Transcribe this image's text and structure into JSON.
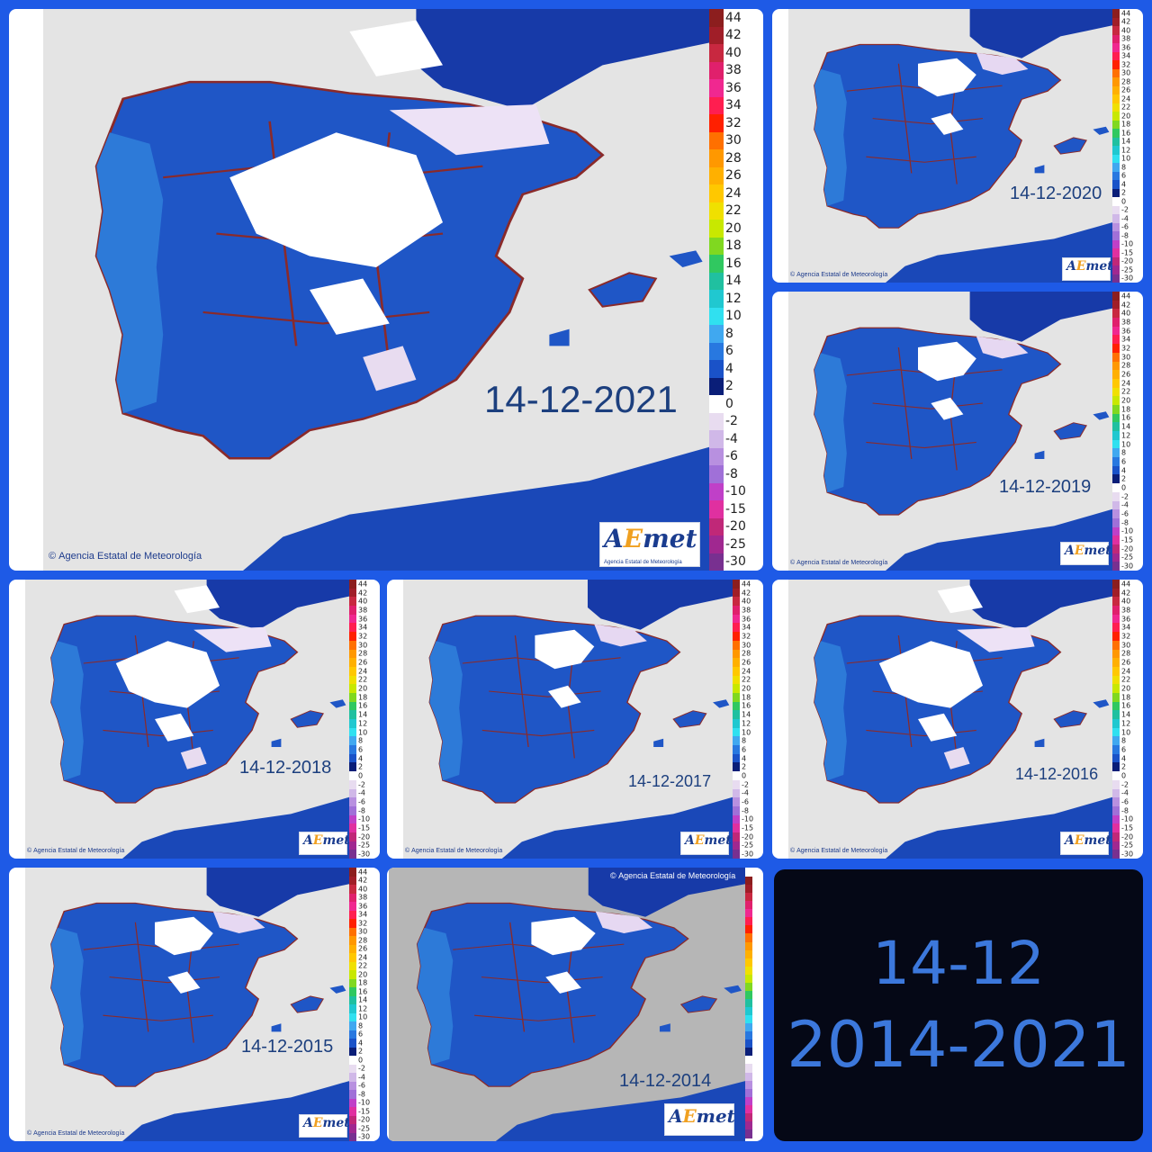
{
  "collage": {
    "title_line1": "14-12",
    "title_line2": "2014-2021"
  },
  "credit": "Agencia Estatal de Meteorología",
  "logo": {
    "word_a": "A",
    "word_e": "E",
    "word_rest": "met",
    "subtitle": "Agencia Estatal de Meteorología"
  },
  "scale_labels": [
    "44",
    "42",
    "40",
    "38",
    "36",
    "34",
    "32",
    "30",
    "28",
    "26",
    "24",
    "22",
    "20",
    "18",
    "16",
    "14",
    "12",
    "10",
    "8",
    "6",
    "4",
    "2",
    "0",
    "-2",
    "-4",
    "-6",
    "-8",
    "-10",
    "-15",
    "-20",
    "-25",
    "-30"
  ],
  "scale_colors": [
    "#8c1e1e",
    "#a01e28",
    "#c82840",
    "#e0206c",
    "#f02890",
    "#ff1e50",
    "#ff2000",
    "#ff7000",
    "#ff9800",
    "#ffb000",
    "#ffc800",
    "#f0e000",
    "#c8e800",
    "#80d820",
    "#30c860",
    "#20c0a0",
    "#20c8d0",
    "#30e0f0",
    "#40a8f0",
    "#2878e0",
    "#1a52c8",
    "#0a1e78",
    "#ffffff",
    "#e8dcf0",
    "#d0b8e8",
    "#b890e0",
    "#a070d8",
    "#c040c8",
    "#e030a0",
    "#c02878",
    "#a02890",
    "#783090"
  ],
  "maps": [
    {
      "id": "2021",
      "date": "14-12-2021"
    },
    {
      "id": "2020",
      "date": "14-12-2020"
    },
    {
      "id": "2019",
      "date": "14-12-2019"
    },
    {
      "id": "2018",
      "date": "14-12-2018"
    },
    {
      "id": "2017",
      "date": "14-12-2017"
    },
    {
      "id": "2016",
      "date": "14-12-2016"
    },
    {
      "id": "2015",
      "date": "14-12-2015"
    },
    {
      "id": "2014",
      "date": "14-12-2014"
    }
  ]
}
